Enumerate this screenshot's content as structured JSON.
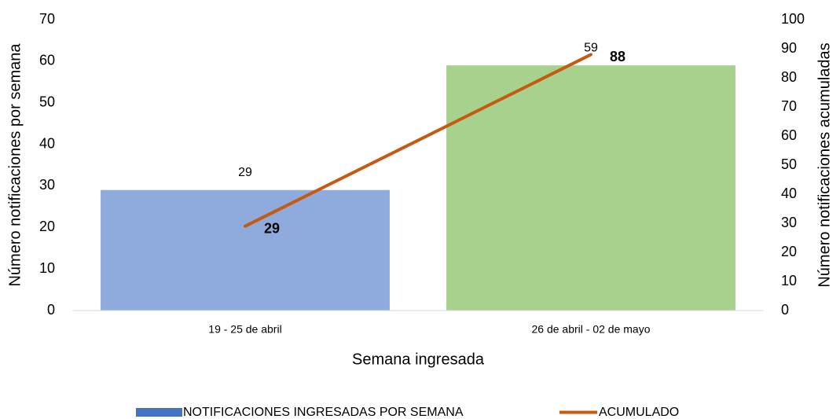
{
  "chart_data": {
    "type": "bar",
    "x_label": "Semana ingresada",
    "y_label": "Número notificaciones por semana",
    "y2_label": "Número notificaciones acumuladas",
    "categories": [
      "19 - 25 de abril",
      "26 de abril - 02 de mayo"
    ],
    "series": [
      {
        "name": "NOTIFICACIONES INGRESADAS POR SEMANA",
        "type": "bar",
        "color": "#4472c4",
        "point_colors": [
          "#8faadc",
          "#a9d18e"
        ],
        "values": [
          29,
          59
        ]
      },
      {
        "name": "ACUMULADO",
        "type": "line",
        "axis": "y2",
        "color": "#c55a11",
        "values": [
          29,
          88
        ]
      }
    ],
    "ylim": [
      0,
      70
    ],
    "yticks": [
      0,
      10,
      20,
      30,
      40,
      50,
      60,
      70
    ],
    "y2lim": [
      0,
      100
    ],
    "y2ticks": [
      0,
      10,
      20,
      30,
      40,
      50,
      60,
      70,
      80,
      90,
      100
    ],
    "legend": "bottom"
  }
}
